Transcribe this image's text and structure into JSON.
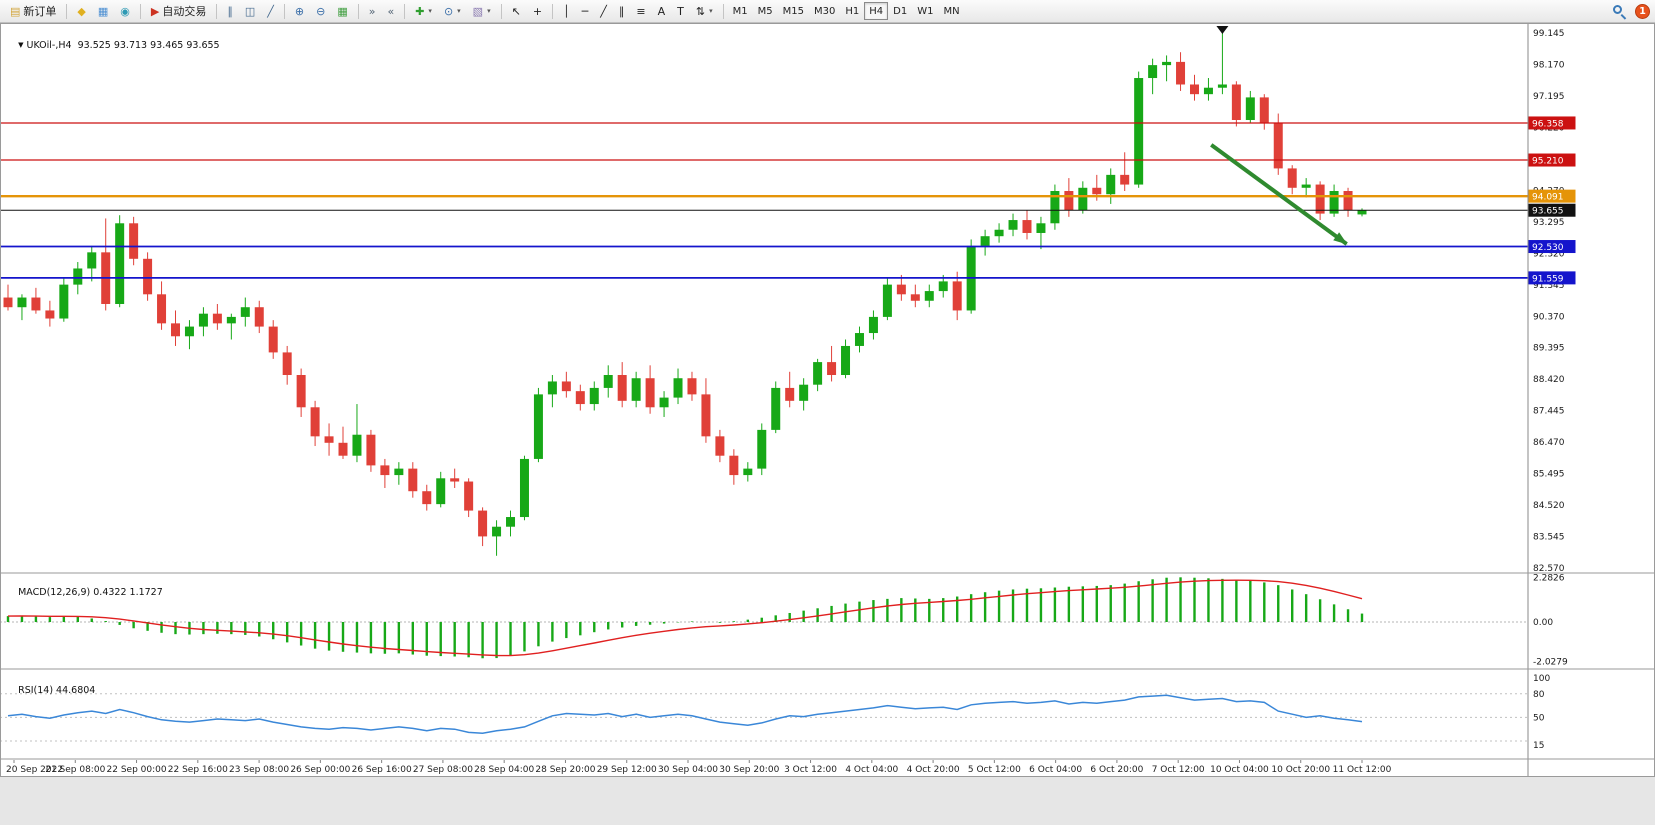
{
  "app": {
    "notification_count": "1"
  },
  "toolbar": {
    "groups": [
      [
        {
          "name": "new-order-button",
          "icon": "new-order-icon",
          "glyph": "▤",
          "color": "#d2a53c",
          "label": "新订单"
        }
      ],
      [
        {
          "name": "market-watch-button",
          "icon": "market-watch-icon",
          "glyph": "◆",
          "color": "#e0b020"
        },
        {
          "name": "data-window-button",
          "icon": "data-window-icon",
          "glyph": "▦",
          "color": "#4a8ed2"
        },
        {
          "name": "navigator-button",
          "icon": "navigator-icon",
          "glyph": "◉",
          "color": "#2e9ab4"
        }
      ],
      [
        {
          "name": "auto-trading-button",
          "icon": "auto-trading-icon",
          "glyph": "▶",
          "color": "#cc3322",
          "label": "自动交易"
        }
      ],
      [
        {
          "name": "bar-chart-button",
          "icon": "bar-chart-icon",
          "glyph": "∥",
          "color": "#44698e"
        },
        {
          "name": "candlestick-chart-button",
          "icon": "candlestick-chart-icon",
          "glyph": "◫",
          "color": "#44698e"
        },
        {
          "name": "line-chart-button",
          "icon": "line-chart-icon",
          "glyph": "╱",
          "color": "#44698e"
        }
      ],
      [
        {
          "name": "zoom-in-button",
          "icon": "zoom-in-icon",
          "glyph": "⊕",
          "color": "#3a6ea8"
        },
        {
          "name": "zoom-out-button",
          "icon": "zoom-out-icon",
          "glyph": "⊖",
          "color": "#3a6ea8"
        },
        {
          "name": "tile-windows-button",
          "icon": "tile-windows-icon",
          "glyph": "▦",
          "color": "#3f9e3f"
        }
      ],
      [
        {
          "name": "auto-scroll-button",
          "icon": "auto-scroll-icon",
          "glyph": "»",
          "color": "#556677"
        },
        {
          "name": "chart-shift-button",
          "icon": "chart-shift-icon",
          "glyph": "«",
          "color": "#556677"
        }
      ],
      [
        {
          "name": "indicators-button",
          "icon": "indicators-icon",
          "glyph": "✚",
          "color": "#2f9e2f",
          "caret": true
        },
        {
          "name": "periods-button",
          "icon": "periods-icon",
          "glyph": "⊙",
          "color": "#3a6ea8",
          "caret": true
        },
        {
          "name": "templates-button",
          "icon": "templates-icon",
          "glyph": "▧",
          "color": "#8a7ab0",
          "caret": true
        }
      ],
      [
        {
          "name": "cursor-button",
          "icon": "cursor-icon",
          "glyph": "↖",
          "color": "#222222"
        },
        {
          "name": "crosshair-button",
          "icon": "crosshair-icon",
          "glyph": "+",
          "color": "#222222"
        }
      ],
      [
        {
          "name": "vertical-line-button",
          "icon": "vertical-line-icon",
          "glyph": "│",
          "color": "#222222"
        },
        {
          "name": "horizontal-line-button",
          "icon": "horizontal-line-icon",
          "glyph": "─",
          "color": "#222222"
        },
        {
          "name": "trendline-button",
          "icon": "trendline-icon",
          "glyph": "╱",
          "color": "#222222"
        },
        {
          "name": "channel-button",
          "icon": "channel-icon",
          "glyph": "∥",
          "color": "#222222"
        },
        {
          "name": "fibonacci-button",
          "icon": "fibonacci-icon",
          "glyph": "≡",
          "color": "#222222"
        },
        {
          "name": "text-button",
          "icon": "text-icon",
          "glyph": "A",
          "color": "#222222"
        },
        {
          "name": "text-label-button",
          "icon": "text-label-icon",
          "glyph": "T",
          "color": "#222222"
        },
        {
          "name": "arrows-button",
          "icon": "arrows-icon",
          "glyph": "⇅",
          "color": "#222222",
          "caret": true
        }
      ]
    ],
    "timeframes": [
      "M1",
      "M5",
      "M15",
      "M30",
      "H1",
      "H4",
      "D1",
      "W1",
      "MN"
    ],
    "active_timeframe": "H4"
  },
  "chart": {
    "symbol_label": "UKOil-,H4  93.525 93.713 93.465 93.655",
    "macd_label": "MACD(12,26,9) 0.4322 1.1727",
    "rsi_label": "RSI(14) 44.6804",
    "colors": {
      "up": "#17a817",
      "down": "#e04038",
      "macd_bar": "#17a817",
      "macd_signal": "#e02020",
      "rsi_line": "#3a87d8",
      "arrow": "#2f8a2f"
    },
    "hlines": [
      {
        "price": 96.358,
        "label": "96.358",
        "color": "#cc1111",
        "width": 1.2
      },
      {
        "price": 95.21,
        "label": "95.210",
        "color": "#cc1111",
        "width": 1.2
      },
      {
        "price": 94.091,
        "label": "94.091",
        "color": "#e59408",
        "width": 2.4
      },
      {
        "price": 92.53,
        "label": "92.530",
        "color": "#1414cc",
        "width": 1.8
      },
      {
        "price": 91.559,
        "label": "91.559",
        "color": "#1414cc",
        "width": 1.8
      }
    ],
    "current_price": {
      "price": 93.655,
      "label": "93.655",
      "color": "#111111",
      "width": 1
    },
    "annotations": {
      "arrow": {
        "from_index": 86.2,
        "from_price": 95.68,
        "to_index": 95.9,
        "to_price": 92.61
      },
      "peak_marker": {
        "index": 87
      }
    },
    "price_axis": {
      "tick_start": 99.145,
      "tick_step": 0.975,
      "tick_count": 18
    },
    "macd_axis": [
      {
        "label": "2.2826",
        "value": 2.2826
      },
      {
        "label": "0.00",
        "value": 0
      },
      {
        "label": "-2.0279",
        "value": -2.0279
      }
    ],
    "rsi_axis": [
      {
        "label": "100",
        "value": 100
      },
      {
        "label": "80",
        "value": 80
      },
      {
        "label": "50",
        "value": 50
      },
      {
        "label": "15",
        "value": 15
      }
    ],
    "rsi_levels": [
      80,
      50,
      20
    ]
  },
  "chart_data": {
    "type": "candlestick",
    "symbol": "UKOil-",
    "timeframe": "H4",
    "ylim": [
      82.53,
      99.45
    ],
    "ohlc": [
      [
        90.95,
        91.35,
        90.55,
        90.65
      ],
      [
        90.65,
        91.05,
        90.25,
        90.95
      ],
      [
        90.95,
        91.25,
        90.45,
        90.55
      ],
      [
        90.55,
        90.85,
        90.05,
        90.3
      ],
      [
        90.3,
        91.55,
        90.2,
        91.35
      ],
      [
        91.35,
        92.05,
        91.05,
        91.85
      ],
      [
        91.85,
        92.55,
        91.45,
        92.35
      ],
      [
        92.35,
        93.4,
        90.55,
        90.75
      ],
      [
        90.75,
        93.5,
        90.65,
        93.25
      ],
      [
        93.25,
        93.45,
        91.95,
        92.15
      ],
      [
        92.15,
        92.35,
        90.85,
        91.05
      ],
      [
        91.05,
        91.45,
        89.95,
        90.15
      ],
      [
        90.15,
        90.55,
        89.45,
        89.75
      ],
      [
        89.75,
        90.25,
        89.35,
        90.05
      ],
      [
        90.05,
        90.65,
        89.75,
        90.45
      ],
      [
        90.45,
        90.75,
        89.95,
        90.15
      ],
      [
        90.15,
        90.45,
        89.65,
        90.35
      ],
      [
        90.35,
        90.95,
        90.05,
        90.65
      ],
      [
        90.65,
        90.85,
        89.85,
        90.05
      ],
      [
        90.05,
        90.25,
        89.05,
        89.25
      ],
      [
        89.25,
        89.45,
        88.25,
        88.55
      ],
      [
        88.55,
        88.75,
        87.25,
        87.55
      ],
      [
        87.55,
        87.75,
        86.35,
        86.65
      ],
      [
        86.65,
        87.05,
        86.05,
        86.45
      ],
      [
        86.45,
        86.95,
        85.95,
        86.05
      ],
      [
        86.05,
        87.65,
        85.85,
        86.7
      ],
      [
        86.7,
        86.85,
        85.55,
        85.75
      ],
      [
        85.75,
        85.95,
        85.05,
        85.45
      ],
      [
        85.45,
        85.85,
        85.15,
        85.65
      ],
      [
        85.65,
        85.85,
        84.75,
        84.95
      ],
      [
        84.95,
        85.15,
        84.35,
        84.55
      ],
      [
        84.55,
        85.55,
        84.45,
        85.35
      ],
      [
        85.35,
        85.65,
        85.05,
        85.25
      ],
      [
        85.25,
        85.35,
        84.15,
        84.35
      ],
      [
        84.35,
        84.45,
        83.25,
        83.55
      ],
      [
        83.55,
        84.05,
        82.95,
        83.85
      ],
      [
        83.85,
        84.35,
        83.55,
        84.15
      ],
      [
        84.15,
        86.05,
        84.05,
        85.95
      ],
      [
        85.95,
        88.15,
        85.85,
        87.95
      ],
      [
        87.95,
        88.55,
        87.55,
        88.35
      ],
      [
        88.35,
        88.65,
        87.85,
        88.05
      ],
      [
        88.05,
        88.25,
        87.45,
        87.65
      ],
      [
        87.65,
        88.35,
        87.45,
        88.15
      ],
      [
        88.15,
        88.85,
        87.85,
        88.55
      ],
      [
        88.55,
        88.95,
        87.55,
        87.75
      ],
      [
        87.75,
        88.65,
        87.55,
        88.45
      ],
      [
        88.45,
        88.85,
        87.35,
        87.55
      ],
      [
        87.55,
        88.05,
        87.25,
        87.85
      ],
      [
        87.85,
        88.75,
        87.65,
        88.45
      ],
      [
        88.45,
        88.65,
        87.75,
        87.95
      ],
      [
        87.95,
        88.45,
        86.45,
        86.65
      ],
      [
        86.65,
        86.85,
        85.85,
        86.05
      ],
      [
        86.05,
        86.25,
        85.15,
        85.45
      ],
      [
        85.45,
        85.85,
        85.25,
        85.65
      ],
      [
        85.65,
        87.05,
        85.45,
        86.85
      ],
      [
        86.85,
        88.35,
        86.75,
        88.15
      ],
      [
        88.15,
        88.65,
        87.55,
        87.75
      ],
      [
        87.75,
        88.45,
        87.45,
        88.25
      ],
      [
        88.25,
        89.05,
        88.05,
        88.95
      ],
      [
        88.95,
        89.45,
        88.35,
        88.55
      ],
      [
        88.55,
        89.65,
        88.45,
        89.45
      ],
      [
        89.45,
        90.05,
        89.25,
        89.85
      ],
      [
        89.85,
        90.55,
        89.65,
        90.35
      ],
      [
        90.35,
        91.55,
        90.25,
        91.35
      ],
      [
        91.35,
        91.65,
        90.85,
        91.05
      ],
      [
        91.05,
        91.35,
        90.65,
        90.85
      ],
      [
        90.85,
        91.35,
        90.65,
        91.15
      ],
      [
        91.15,
        91.65,
        90.95,
        91.45
      ],
      [
        91.45,
        91.75,
        90.25,
        90.55
      ],
      [
        90.55,
        92.75,
        90.45,
        92.55
      ],
      [
        92.55,
        93.05,
        92.25,
        92.85
      ],
      [
        92.85,
        93.25,
        92.65,
        93.05
      ],
      [
        93.05,
        93.55,
        92.85,
        93.35
      ],
      [
        93.35,
        93.65,
        92.75,
        92.95
      ],
      [
        92.95,
        93.45,
        92.45,
        93.25
      ],
      [
        93.25,
        94.45,
        93.05,
        94.25
      ],
      [
        94.25,
        94.65,
        93.45,
        93.65
      ],
      [
        93.65,
        94.55,
        93.55,
        94.35
      ],
      [
        94.35,
        94.75,
        93.95,
        94.15
      ],
      [
        94.15,
        94.95,
        93.85,
        94.75
      ],
      [
        94.75,
        95.45,
        94.25,
        94.45
      ],
      [
        94.45,
        97.95,
        94.35,
        97.75
      ],
      [
        97.75,
        98.35,
        97.25,
        98.15
      ],
      [
        98.15,
        98.45,
        97.65,
        98.25
      ],
      [
        98.25,
        98.55,
        97.35,
        97.55
      ],
      [
        97.55,
        97.85,
        97.05,
        97.25
      ],
      [
        97.25,
        97.75,
        97.05,
        97.45
      ],
      [
        97.45,
        99.15,
        97.25,
        97.55
      ],
      [
        97.55,
        97.65,
        96.25,
        96.45
      ],
      [
        96.45,
        97.35,
        96.35,
        97.15
      ],
      [
        97.15,
        97.25,
        96.15,
        96.35
      ],
      [
        96.35,
        96.65,
        94.75,
        94.95
      ],
      [
        94.95,
        95.05,
        94.15,
        94.35
      ],
      [
        94.35,
        94.65,
        94.05,
        94.45
      ],
      [
        94.45,
        94.55,
        93.35,
        93.55
      ],
      [
        93.55,
        94.45,
        93.45,
        94.25
      ],
      [
        94.25,
        94.35,
        93.45,
        93.65
      ],
      [
        93.525,
        93.713,
        93.465,
        93.655
      ]
    ],
    "macd": {
      "type": "bar",
      "params": "12,26,9",
      "signal_period": 9,
      "last_main": 0.4322,
      "last_signal": 1.1727,
      "ylim": [
        -2.0279,
        2.2826
      ],
      "values": [
        0.3,
        0.32,
        0.28,
        0.25,
        0.3,
        0.26,
        0.18,
        0.05,
        -0.15,
        -0.32,
        -0.45,
        -0.55,
        -0.62,
        -0.64,
        -0.62,
        -0.6,
        -0.62,
        -0.66,
        -0.74,
        -0.88,
        -1.04,
        -1.2,
        -1.36,
        -1.46,
        -1.52,
        -1.56,
        -1.6,
        -1.62,
        -1.6,
        -1.66,
        -1.72,
        -1.74,
        -1.76,
        -1.8,
        -1.85,
        -1.84,
        -1.72,
        -1.5,
        -1.24,
        -1.0,
        -0.82,
        -0.68,
        -0.52,
        -0.38,
        -0.28,
        -0.2,
        -0.14,
        -0.08,
        -0.02,
        0.03,
        0.0,
        -0.04,
        0.04,
        0.12,
        0.22,
        0.34,
        0.46,
        0.58,
        0.7,
        0.82,
        0.94,
        1.04,
        1.12,
        1.18,
        1.22,
        1.2,
        1.18,
        1.22,
        1.3,
        1.42,
        1.52,
        1.6,
        1.66,
        1.7,
        1.72,
        1.76,
        1.8,
        1.82,
        1.84,
        1.88,
        1.96,
        2.08,
        2.18,
        2.26,
        2.28,
        2.26,
        2.23,
        2.2,
        2.15,
        2.1,
        2.02,
        1.88,
        1.66,
        1.42,
        1.16,
        0.9,
        0.65,
        0.43
      ]
    },
    "rsi": {
      "type": "line",
      "period": 14,
      "last": 44.6804,
      "ylim": [
        15,
        100
      ],
      "values": [
        52,
        54,
        51,
        49,
        53,
        56,
        58,
        55,
        60,
        56,
        51,
        47,
        45,
        44,
        46,
        48,
        47,
        46,
        48,
        44,
        41,
        38,
        36,
        35,
        37,
        36,
        34,
        36,
        38,
        36,
        33,
        36,
        35,
        31,
        30,
        33,
        35,
        38,
        45,
        52,
        55,
        54,
        53,
        55,
        51,
        54,
        50,
        52,
        54,
        52,
        48,
        44,
        42,
        40,
        43,
        48,
        52,
        51,
        54,
        56,
        58,
        60,
        62,
        65,
        63,
        61,
        62,
        63,
        60,
        66,
        68,
        69,
        70,
        68,
        69,
        71,
        67,
        69,
        68,
        70,
        72,
        76,
        77,
        78,
        75,
        72,
        73,
        74,
        70,
        71,
        69,
        58,
        54,
        50,
        52,
        49,
        47,
        44.68
      ]
    },
    "time_labels": [
      "20 Sep 2022",
      "21 Sep 08:00",
      "22 Sep 00:00",
      "22 Sep 16:00",
      "23 Sep 08:00",
      "26 Sep 00:00",
      "26 Sep 16:00",
      "27 Sep 08:00",
      "28 Sep 04:00",
      "28 Sep 20:00",
      "29 Sep 12:00",
      "30 Sep 04:00",
      "30 Sep 20:00",
      "3 Oct 12:00",
      "4 Oct 04:00",
      "4 Oct 20:00",
      "5 Oct 12:00",
      "6 Oct 04:00",
      "6 Oct 20:00",
      "7 Oct 12:00",
      "10 Oct 04:00",
      "10 Oct 20:00",
      "11 Oct 12:00"
    ]
  }
}
